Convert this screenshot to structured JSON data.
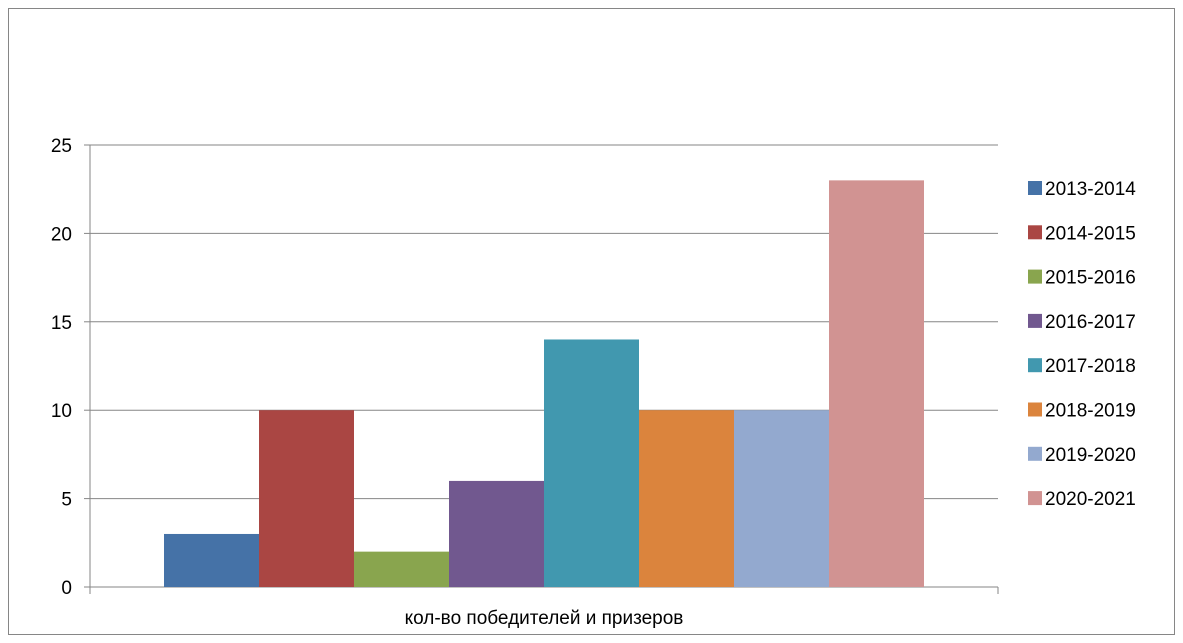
{
  "chart_data": {
    "type": "bar",
    "categories": [
      "кол-во победителей и призеров"
    ],
    "series": [
      {
        "name": "2013-2014",
        "values": [
          3
        ],
        "color": "#4572A7"
      },
      {
        "name": "2014-2015",
        "values": [
          10
        ],
        "color": "#AA4643"
      },
      {
        "name": "2015-2016",
        "values": [
          2
        ],
        "color": "#89A54E"
      },
      {
        "name": "2016-2017",
        "values": [
          6
        ],
        "color": "#71588F"
      },
      {
        "name": "2017-2018",
        "values": [
          14
        ],
        "color": "#4198AF"
      },
      {
        "name": "2018-2019",
        "values": [
          10
        ],
        "color": "#DB843D"
      },
      {
        "name": "2019-2020",
        "values": [
          10
        ],
        "color": "#93A9CF"
      },
      {
        "name": "2020-2021",
        "values": [
          23
        ],
        "color": "#D19392"
      }
    ],
    "yticks": [
      "0",
      "5",
      "10",
      "15",
      "20",
      "25"
    ],
    "ylim": [
      0,
      25
    ],
    "grid": true,
    "legend_position": "right",
    "title": "",
    "xlabel": "",
    "ylabel": ""
  }
}
